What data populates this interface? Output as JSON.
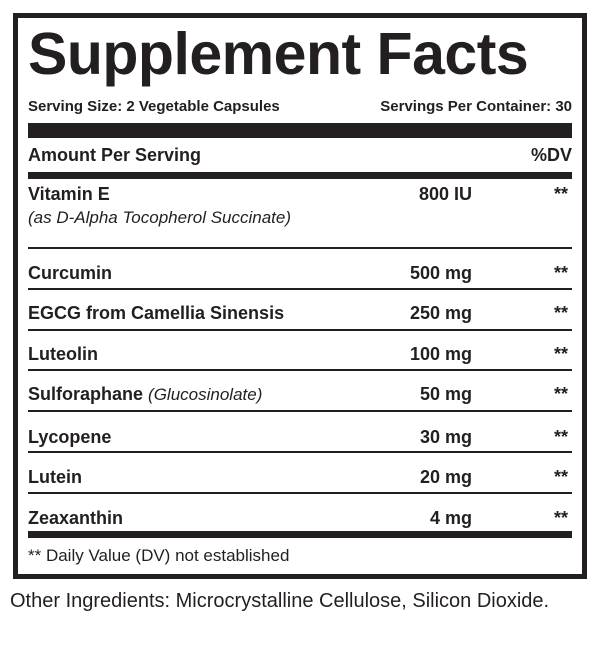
{
  "header": {
    "title": "Supplement Facts",
    "serving_size": "Serving Size: 2 Vegetable Capsules",
    "servings_per_container": "Servings Per Container: 30"
  },
  "table": {
    "columns": [
      "Amount Per Serving",
      "%DV"
    ],
    "rows": [
      {
        "name": "Vitamin E",
        "note": "(as D-Alpha Tocopherol Succinate)",
        "amount": "800 IU",
        "dv": "**"
      },
      {
        "name": "Curcumin",
        "amount": "500 mg",
        "dv": "**"
      },
      {
        "name": "EGCG from Camellia Sinensis",
        "amount": "250 mg",
        "dv": "**"
      },
      {
        "name": "Luteolin",
        "amount": "100 mg",
        "dv": "**"
      },
      {
        "name": "Sulforaphane",
        "note": "(Glucosinolate)",
        "amount": "50 mg",
        "dv": "**"
      },
      {
        "name": "Lycopene",
        "amount": "30 mg",
        "dv": "**"
      },
      {
        "name": "Lutein",
        "amount": "20 mg",
        "dv": "**"
      },
      {
        "name": "Zeaxanthin",
        "amount": "4 mg",
        "dv": "**"
      }
    ]
  },
  "footnote": "** Daily Value (DV) not established",
  "other_ingredients": "Other Ingredients:  Microcrystalline Cellulose, Silicon Dioxide."
}
